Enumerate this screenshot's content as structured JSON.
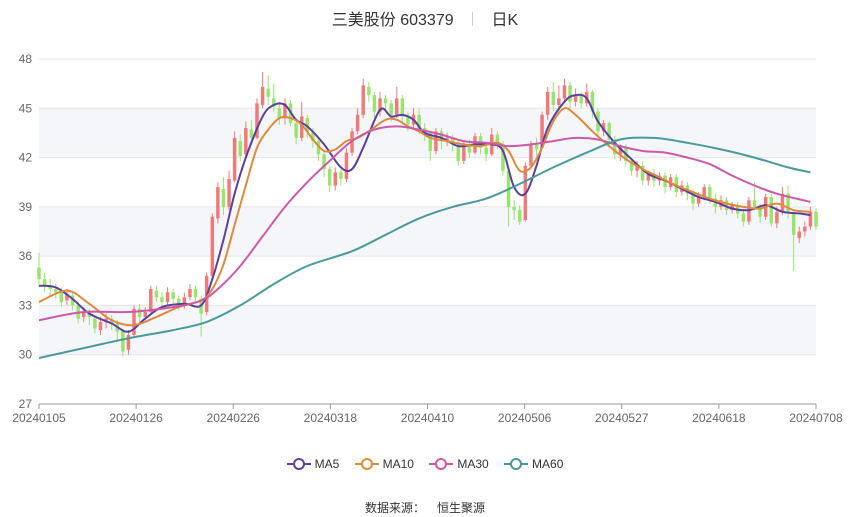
{
  "title": {
    "name": "三美股份",
    "code": "603379",
    "period": "日K"
  },
  "source": {
    "label": "数据来源：",
    "name": "恒生聚源"
  },
  "legend": [
    {
      "name": "MA5",
      "color": "#5b3f9c"
    },
    {
      "name": "MA10",
      "color": "#dd8a3c"
    },
    {
      "name": "MA30",
      "color": "#cc5aa8"
    },
    {
      "name": "MA60",
      "color": "#4a9a9a"
    }
  ],
  "colors": {
    "up": "#f07a7a",
    "down": "#98e46c",
    "grid": "#e6e6e6",
    "band": "#f5f6fa"
  },
  "chart_data": {
    "type": "candlestick",
    "ylim": [
      27,
      48
    ],
    "yticks": [
      "27",
      "30",
      "33",
      "36",
      "39",
      "42",
      "45",
      "48"
    ],
    "xticks": [
      "20240105",
      "20240126",
      "20240226",
      "20240318",
      "20240410",
      "20240506",
      "20240527",
      "20240618",
      "20240708"
    ],
    "candles": [
      [
        35.3,
        34.6,
        36.2,
        34.1
      ],
      [
        34.6,
        34.2,
        35.0,
        33.8
      ],
      [
        34.2,
        34.0,
        34.6,
        33.6
      ],
      [
        34.0,
        33.8,
        34.3,
        33.4
      ],
      [
        33.8,
        33.2,
        34.1,
        32.9
      ],
      [
        33.3,
        33.7,
        34.0,
        33.0
      ],
      [
        33.6,
        33.0,
        33.9,
        32.7
      ],
      [
        33.0,
        32.2,
        33.2,
        31.9
      ],
      [
        32.3,
        32.6,
        32.9,
        32.0
      ],
      [
        32.6,
        32.3,
        32.8,
        31.8
      ],
      [
        32.2,
        31.6,
        32.4,
        31.3
      ],
      [
        31.5,
        32.0,
        32.3,
        31.2
      ],
      [
        32.0,
        32.2,
        32.5,
        31.6
      ],
      [
        32.2,
        31.9,
        32.4,
        31.5
      ],
      [
        31.9,
        31.4,
        32.1,
        30.9
      ],
      [
        31.5,
        30.2,
        31.6,
        29.9
      ],
      [
        30.3,
        31.2,
        31.5,
        30.0
      ],
      [
        31.2,
        32.8,
        33.0,
        31.1
      ],
      [
        32.8,
        32.3,
        33.1,
        32.0
      ],
      [
        32.3,
        32.6,
        32.9,
        32.1
      ],
      [
        32.6,
        34.0,
        34.2,
        32.5
      ],
      [
        33.9,
        33.5,
        34.2,
        33.2
      ],
      [
        33.5,
        33.2,
        33.8,
        32.9
      ],
      [
        33.2,
        33.8,
        34.1,
        33.0
      ],
      [
        33.8,
        33.4,
        34.0,
        33.0
      ],
      [
        33.4,
        33.0,
        33.6,
        32.7
      ],
      [
        33.0,
        33.5,
        33.8,
        32.8
      ],
      [
        33.5,
        34.0,
        34.3,
        33.3
      ],
      [
        34.0,
        33.5,
        34.2,
        33.1
      ],
      [
        33.4,
        32.5,
        33.6,
        31.1
      ],
      [
        32.6,
        34.8,
        35.0,
        32.4
      ],
      [
        34.8,
        38.4,
        38.6,
        34.6
      ],
      [
        38.3,
        40.2,
        40.5,
        38.0
      ],
      [
        40.1,
        39.0,
        40.8,
        38.5
      ],
      [
        39.0,
        40.7,
        41.2,
        38.8
      ],
      [
        40.6,
        43.2,
        43.6,
        40.5
      ],
      [
        43.0,
        42.1,
        43.4,
        41.8
      ],
      [
        42.2,
        43.8,
        44.2,
        42.0
      ],
      [
        43.7,
        43.2,
        44.3,
        42.8
      ],
      [
        43.2,
        45.3,
        45.6,
        43.1
      ],
      [
        45.2,
        46.3,
        47.2,
        45.0
      ],
      [
        46.2,
        45.7,
        47.0,
        45.2
      ],
      [
        45.6,
        45.1,
        46.5,
        44.8
      ],
      [
        45.0,
        44.4,
        45.4,
        44.0
      ],
      [
        44.4,
        45.3,
        45.6,
        44.0
      ],
      [
        45.3,
        44.1,
        45.5,
        43.9
      ],
      [
        44.1,
        43.2,
        44.3,
        42.8
      ],
      [
        43.2,
        44.5,
        45.4,
        43.0
      ],
      [
        44.4,
        43.6,
        44.6,
        43.2
      ],
      [
        43.5,
        43.0,
        43.8,
        42.6
      ],
      [
        43.0,
        42.2,
        43.2,
        41.8
      ],
      [
        42.2,
        41.3,
        42.4,
        40.8
      ],
      [
        41.3,
        40.3,
        41.5,
        39.9
      ],
      [
        40.3,
        41.1,
        41.4,
        40.0
      ],
      [
        41.1,
        40.7,
        41.3,
        40.3
      ],
      [
        40.7,
        42.3,
        42.6,
        40.5
      ],
      [
        42.3,
        43.6,
        43.8,
        42.1
      ],
      [
        43.6,
        44.6,
        45.0,
        43.4
      ],
      [
        44.6,
        46.4,
        46.8,
        44.4
      ],
      [
        46.3,
        45.8,
        46.6,
        45.4
      ],
      [
        45.8,
        44.8,
        46.0,
        44.4
      ],
      [
        44.8,
        45.6,
        46.0,
        44.5
      ],
      [
        45.6,
        45.3,
        45.8,
        44.8
      ],
      [
        45.3,
        44.6,
        45.5,
        44.2
      ],
      [
        44.6,
        45.6,
        46.3,
        44.4
      ],
      [
        45.6,
        44.5,
        45.8,
        44.2
      ],
      [
        44.5,
        44.0,
        44.8,
        43.6
      ],
      [
        44.0,
        44.6,
        45.0,
        43.7
      ],
      [
        44.6,
        43.8,
        45.0,
        43.4
      ],
      [
        43.8,
        43.5,
        44.1,
        43.0
      ],
      [
        43.5,
        42.4,
        43.6,
        41.8
      ],
      [
        42.4,
        43.6,
        43.8,
        42.2
      ],
      [
        43.6,
        43.0,
        43.8,
        42.5
      ],
      [
        43.0,
        43.2,
        43.5,
        42.7
      ],
      [
        43.2,
        42.8,
        43.4,
        42.4
      ],
      [
        42.8,
        41.8,
        43.0,
        41.5
      ],
      [
        41.8,
        42.8,
        43.0,
        41.6
      ],
      [
        42.8,
        42.3,
        43.1,
        42.0
      ],
      [
        42.3,
        43.3,
        43.5,
        42.2
      ],
      [
        43.3,
        42.6,
        43.5,
        42.2
      ],
      [
        42.6,
        42.2,
        42.9,
        41.8
      ],
      [
        42.2,
        43.4,
        43.8,
        42.1
      ],
      [
        43.4,
        42.8,
        43.6,
        42.5
      ],
      [
        42.8,
        41.2,
        43.0,
        40.9
      ],
      [
        41.2,
        39.0,
        41.3,
        37.8
      ],
      [
        39.0,
        38.8,
        39.4,
        38.2
      ],
      [
        38.8,
        38.1,
        39.1,
        37.9
      ],
      [
        38.2,
        41.5,
        41.7,
        38.1
      ],
      [
        41.5,
        42.8,
        43.0,
        41.3
      ],
      [
        42.8,
        42.5,
        43.2,
        42.1
      ],
      [
        42.6,
        44.6,
        44.8,
        42.5
      ],
      [
        44.6,
        46.0,
        46.3,
        44.3
      ],
      [
        46.0,
        45.2,
        46.6,
        44.8
      ],
      [
        45.2,
        45.6,
        46.4,
        45.0
      ],
      [
        45.6,
        46.4,
        46.8,
        45.4
      ],
      [
        46.4,
        45.4,
        46.6,
        45.0
      ],
      [
        45.4,
        45.8,
        46.2,
        45.1
      ],
      [
        45.8,
        45.3,
        46.0,
        45.0
      ],
      [
        45.3,
        46.0,
        46.5,
        45.1
      ],
      [
        46.0,
        44.8,
        46.1,
        44.4
      ],
      [
        44.8,
        43.6,
        45.0,
        43.2
      ],
      [
        43.6,
        44.1,
        44.3,
        43.3
      ],
      [
        44.1,
        43.1,
        44.2,
        42.7
      ],
      [
        43.1,
        42.2,
        43.3,
        41.9
      ],
      [
        42.2,
        42.6,
        42.8,
        41.8
      ],
      [
        42.6,
        41.8,
        42.8,
        41.5
      ],
      [
        41.8,
        41.2,
        42.0,
        40.9
      ],
      [
        41.2,
        41.5,
        41.8,
        40.8
      ],
      [
        41.5,
        40.6,
        41.8,
        40.3
      ],
      [
        40.6,
        41.0,
        41.2,
        40.3
      ],
      [
        41.0,
        40.6,
        41.3,
        40.2
      ],
      [
        40.6,
        40.9,
        41.1,
        40.3
      ],
      [
        40.9,
        40.2,
        41.1,
        39.8
      ],
      [
        40.2,
        40.8,
        41.0,
        40.0
      ],
      [
        40.8,
        39.9,
        41.0,
        39.6
      ],
      [
        39.9,
        40.3,
        40.6,
        39.7
      ],
      [
        40.3,
        39.8,
        40.5,
        39.4
      ],
      [
        39.8,
        39.2,
        40.0,
        38.8
      ],
      [
        39.2,
        39.6,
        39.9,
        39.0
      ],
      [
        39.6,
        40.2,
        40.4,
        39.4
      ],
      [
        40.2,
        39.5,
        40.4,
        39.2
      ],
      [
        39.5,
        39.0,
        39.8,
        38.6
      ],
      [
        39.0,
        39.4,
        39.7,
        38.8
      ],
      [
        39.4,
        38.8,
        39.6,
        38.5
      ],
      [
        38.8,
        39.1,
        39.3,
        38.6
      ],
      [
        39.1,
        38.6,
        39.3,
        38.3
      ],
      [
        38.6,
        38.1,
        38.8,
        37.8
      ],
      [
        38.1,
        39.4,
        39.6,
        37.9
      ],
      [
        39.4,
        39.0,
        40.5,
        38.8
      ],
      [
        39.0,
        38.4,
        39.2,
        38.0
      ],
      [
        38.4,
        39.6,
        39.8,
        38.2
      ],
      [
        39.6,
        38.0,
        39.8,
        37.8
      ],
      [
        38.0,
        38.7,
        39.0,
        37.7
      ],
      [
        38.7,
        39.8,
        40.2,
        38.5
      ],
      [
        39.8,
        38.6,
        40.3,
        38.3
      ],
      [
        38.6,
        37.3,
        38.8,
        35.1
      ],
      [
        37.1,
        37.5,
        37.8,
        36.8
      ],
      [
        37.5,
        37.8,
        38.1,
        37.2
      ],
      [
        37.8,
        38.7,
        39.0,
        37.6
      ],
      [
        38.7,
        37.8,
        38.9,
        37.6
      ]
    ],
    "ma": {
      "MA5": [
        [
          0,
          34.2
        ],
        [
          3,
          34.1
        ],
        [
          6,
          33.4
        ],
        [
          9,
          32.5
        ],
        [
          13,
          31.9
        ],
        [
          16,
          31.4
        ],
        [
          19,
          32.2
        ],
        [
          22,
          32.9
        ],
        [
          26,
          33.1
        ],
        [
          29,
          33.0
        ],
        [
          31,
          34.6
        ],
        [
          33,
          37.0
        ],
        [
          35,
          39.8
        ],
        [
          37,
          42.0
        ],
        [
          40,
          44.5
        ],
        [
          42,
          45.2
        ],
        [
          44,
          45.2
        ],
        [
          46,
          44.3
        ],
        [
          48,
          43.9
        ],
        [
          51,
          42.8
        ],
        [
          54,
          41.4
        ],
        [
          56,
          41.3
        ],
        [
          58,
          42.6
        ],
        [
          61,
          44.9
        ],
        [
          63,
          44.5
        ],
        [
          65,
          44.6
        ],
        [
          67,
          44.3
        ],
        [
          69,
          43.5
        ],
        [
          72,
          43.2
        ],
        [
          75,
          42.7
        ],
        [
          78,
          42.8
        ],
        [
          81,
          42.8
        ],
        [
          83,
          42.4
        ],
        [
          85,
          40.2
        ],
        [
          87,
          39.8
        ],
        [
          89,
          41.5
        ],
        [
          91,
          43.8
        ],
        [
          94,
          45.4
        ],
        [
          96,
          45.8
        ],
        [
          98,
          45.6
        ],
        [
          100,
          44.2
        ],
        [
          103,
          42.9
        ],
        [
          106,
          41.9
        ],
        [
          109,
          41.0
        ],
        [
          112,
          40.6
        ],
        [
          115,
          40.1
        ],
        [
          118,
          39.6
        ],
        [
          121,
          39.3
        ],
        [
          124,
          38.9
        ],
        [
          127,
          38.8
        ],
        [
          130,
          39.1
        ],
        [
          133,
          38.7
        ],
        [
          136,
          38.6
        ],
        [
          138,
          38.5
        ]
      ],
      "MA10": [
        [
          0,
          33.2
        ],
        [
          5,
          33.9
        ],
        [
          9,
          33.1
        ],
        [
          13,
          32.1
        ],
        [
          17,
          31.8
        ],
        [
          21,
          32.3
        ],
        [
          25,
          32.9
        ],
        [
          29,
          33.3
        ],
        [
          31,
          34.0
        ],
        [
          33,
          35.5
        ],
        [
          35,
          37.9
        ],
        [
          37,
          40.3
        ],
        [
          39,
          42.6
        ],
        [
          41,
          43.7
        ],
        [
          43,
          44.4
        ],
        [
          45,
          44.4
        ],
        [
          47,
          44.0
        ],
        [
          49,
          43.1
        ],
        [
          51,
          42.4
        ],
        [
          53,
          42.5
        ],
        [
          55,
          43.0
        ],
        [
          57,
          43.2
        ],
        [
          59,
          43.6
        ],
        [
          62,
          44.3
        ],
        [
          64,
          44.3
        ],
        [
          66,
          43.9
        ],
        [
          68,
          43.6
        ],
        [
          70,
          43.2
        ],
        [
          73,
          43.0
        ],
        [
          76,
          42.8
        ],
        [
          79,
          42.7
        ],
        [
          82,
          42.9
        ],
        [
          84,
          42.4
        ],
        [
          86,
          41.2
        ],
        [
          88,
          41.4
        ],
        [
          90,
          42.6
        ],
        [
          92,
          44.2
        ],
        [
          94,
          45.0
        ],
        [
          96,
          44.6
        ],
        [
          99,
          43.6
        ],
        [
          102,
          42.7
        ],
        [
          105,
          41.9
        ],
        [
          108,
          41.3
        ],
        [
          111,
          40.8
        ],
        [
          114,
          40.3
        ],
        [
          117,
          39.9
        ],
        [
          120,
          39.5
        ],
        [
          123,
          39.2
        ],
        [
          126,
          39.0
        ],
        [
          129,
          38.9
        ],
        [
          132,
          39.2
        ],
        [
          135,
          38.8
        ],
        [
          138,
          38.7
        ]
      ],
      "MA30": [
        [
          0,
          32.1
        ],
        [
          8,
          32.6
        ],
        [
          16,
          32.6
        ],
        [
          24,
          32.9
        ],
        [
          29,
          33.3
        ],
        [
          32,
          34.0
        ],
        [
          36,
          35.4
        ],
        [
          40,
          37.2
        ],
        [
          44,
          39.0
        ],
        [
          48,
          40.5
        ],
        [
          52,
          41.8
        ],
        [
          56,
          43.0
        ],
        [
          60,
          43.7
        ],
        [
          64,
          43.9
        ],
        [
          68,
          43.7
        ],
        [
          72,
          43.4
        ],
        [
          76,
          43.0
        ],
        [
          80,
          42.9
        ],
        [
          84,
          42.7
        ],
        [
          88,
          42.8
        ],
        [
          92,
          43.0
        ],
        [
          96,
          43.2
        ],
        [
          100,
          43.1
        ],
        [
          104,
          42.7
        ],
        [
          108,
          42.4
        ],
        [
          112,
          42.3
        ],
        [
          116,
          42.0
        ],
        [
          120,
          41.6
        ],
        [
          124,
          40.9
        ],
        [
          128,
          40.3
        ],
        [
          132,
          39.8
        ],
        [
          138,
          39.3
        ]
      ],
      "MA60": [
        [
          0,
          29.8
        ],
        [
          8,
          30.4
        ],
        [
          16,
          31.0
        ],
        [
          24,
          31.5
        ],
        [
          30,
          32.0
        ],
        [
          36,
          33.0
        ],
        [
          42,
          34.3
        ],
        [
          48,
          35.4
        ],
        [
          56,
          36.3
        ],
        [
          62,
          37.3
        ],
        [
          68,
          38.3
        ],
        [
          74,
          39.0
        ],
        [
          80,
          39.5
        ],
        [
          86,
          40.4
        ],
        [
          92,
          41.4
        ],
        [
          98,
          42.3
        ],
        [
          104,
          43.1
        ],
        [
          110,
          43.2
        ],
        [
          116,
          42.9
        ],
        [
          122,
          42.5
        ],
        [
          128,
          42.0
        ],
        [
          134,
          41.4
        ],
        [
          138,
          41.1
        ]
      ]
    }
  }
}
